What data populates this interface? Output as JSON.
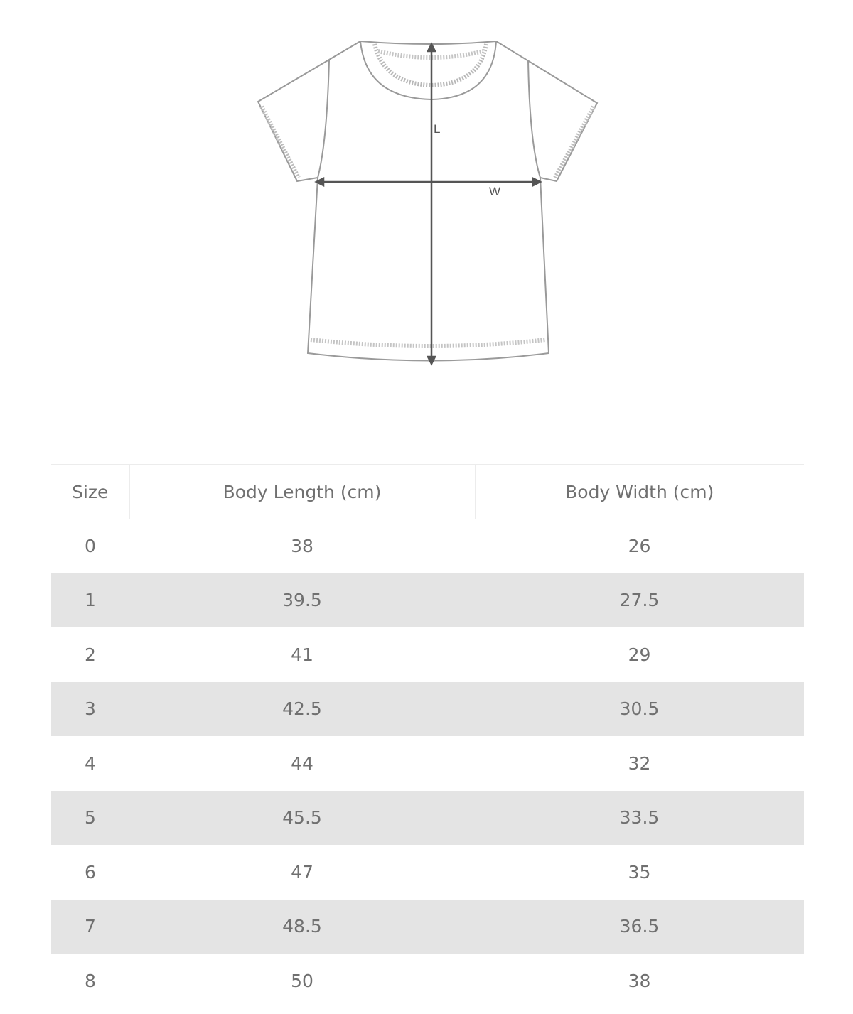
{
  "diagram": {
    "length_label": "L",
    "width_label": "W"
  },
  "table": {
    "headers": [
      "Size",
      "Body Length (cm)",
      "Body Width (cm)"
    ],
    "rows": [
      [
        "0",
        "38",
        "26"
      ],
      [
        "1",
        "39.5",
        "27.5"
      ],
      [
        "2",
        "41",
        "29"
      ],
      [
        "3",
        "42.5",
        "30.5"
      ],
      [
        "4",
        "44",
        "32"
      ],
      [
        "5",
        "45.5",
        "33.5"
      ],
      [
        "6",
        "47",
        "35"
      ],
      [
        "7",
        "48.5",
        "36.5"
      ],
      [
        "8",
        "50",
        "38"
      ]
    ]
  }
}
